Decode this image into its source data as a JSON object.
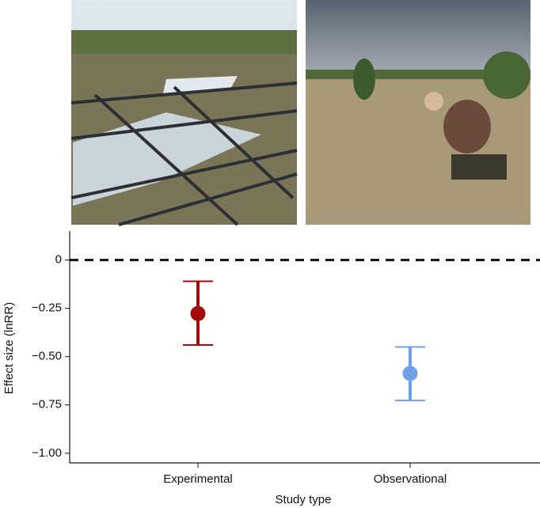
{
  "chart_data": {
    "type": "errorbar",
    "xlabel": "Study type",
    "ylabel": "Effect size (lnRR)",
    "categories": [
      "Experimental",
      "Observational"
    ],
    "series": [
      {
        "colors": [
          "#a30a0a",
          "#6f9fe8"
        ],
        "values": [
          -0.277,
          -0.587
        ],
        "lower": [
          -0.44,
          -0.727
        ],
        "upper": [
          -0.11,
          -0.45
        ]
      }
    ],
    "ylim": [
      -1.05,
      0.15
    ],
    "yticks": [
      0,
      {
        "value": -0.25,
        "label": "−0.25"
      },
      {
        "value": -0.5,
        "label": "−0.50"
      },
      {
        "value": -0.75,
        "label": "−0.75"
      },
      {
        "value": -1,
        "label": "−1.00"
      }
    ],
    "hline": 0
  }
}
